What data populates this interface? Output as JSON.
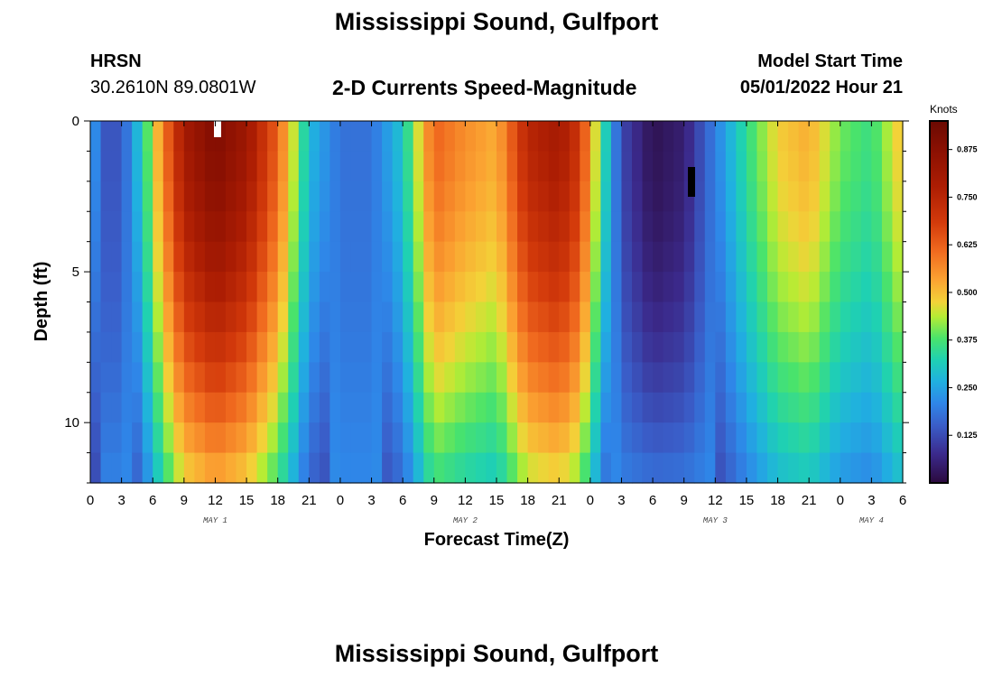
{
  "header": {
    "title": "Mississippi Sound, Gulfport",
    "station_code": "HRSN",
    "coordinates": "30.2610N  89.0801W",
    "subtitle": "2-D Currents Speed-Magnitude",
    "model_label": "Model Start Time",
    "model_time": "05/01/2022 Hour 21"
  },
  "footer": {
    "title": "Mississippi Sound, Gulfport"
  },
  "chart_data": {
    "type": "heatmap",
    "title": "2-D Currents Speed-Magnitude",
    "xlabel": "Forecast Time(Z)",
    "ylabel": "Depth (ft)",
    "x_range_hours": [
      0,
      78
    ],
    "x_ticks": [
      "0",
      "3",
      "6",
      "9",
      "12",
      "15",
      "18",
      "21",
      "0",
      "3",
      "6",
      "9",
      "12",
      "15",
      "18",
      "21",
      "0",
      "3",
      "6",
      "9",
      "12",
      "15",
      "18",
      "21",
      "0",
      "3",
      "6"
    ],
    "day_labels": [
      {
        "label": "MAY 1",
        "hour": 12
      },
      {
        "label": "MAY 2",
        "hour": 36
      },
      {
        "label": "MAY 3",
        "hour": 60
      },
      {
        "label": "MAY 4",
        "hour": 75
      }
    ],
    "ylim": [
      0,
      12
    ],
    "y_ticks": [
      "0",
      "5",
      "10"
    ],
    "colorbar": {
      "title": "Knots",
      "min": 0,
      "max": 0.95,
      "ticks": [
        "0.125",
        "0.250",
        "0.375",
        "0.500",
        "0.625",
        "0.750",
        "0.875"
      ]
    },
    "surface_speed_knots": [
      {
        "hour": 0,
        "value": 0.25
      },
      {
        "hour": 1.5,
        "value": 0.14
      },
      {
        "hour": 3,
        "value": 0.14
      },
      {
        "hour": 5,
        "value": 0.32
      },
      {
        "hour": 7,
        "value": 0.58
      },
      {
        "hour": 9,
        "value": 0.8
      },
      {
        "hour": 12,
        "value": 0.9
      },
      {
        "hour": 15,
        "value": 0.82
      },
      {
        "hour": 18,
        "value": 0.62
      },
      {
        "hour": 19.5,
        "value": 0.45
      },
      {
        "hour": 21,
        "value": 0.28
      },
      {
        "hour": 24,
        "value": 0.18
      },
      {
        "hour": 27,
        "value": 0.18
      },
      {
        "hour": 30,
        "value": 0.3
      },
      {
        "hour": 33,
        "value": 0.62
      },
      {
        "hour": 36,
        "value": 0.56
      },
      {
        "hour": 39,
        "value": 0.52
      },
      {
        "hour": 42,
        "value": 0.75
      },
      {
        "hour": 45,
        "value": 0.8
      },
      {
        "hour": 47,
        "value": 0.7
      },
      {
        "hour": 49,
        "value": 0.38
      },
      {
        "hour": 51,
        "value": 0.12
      },
      {
        "hour": 54,
        "value": 0.02
      },
      {
        "hour": 57,
        "value": 0.05
      },
      {
        "hour": 60,
        "value": 0.2
      },
      {
        "hour": 63,
        "value": 0.35
      },
      {
        "hour": 66,
        "value": 0.48
      },
      {
        "hour": 69,
        "value": 0.52
      },
      {
        "hour": 72,
        "value": 0.4
      },
      {
        "hour": 75,
        "value": 0.36
      },
      {
        "hour": 78,
        "value": 0.5
      }
    ]
  }
}
